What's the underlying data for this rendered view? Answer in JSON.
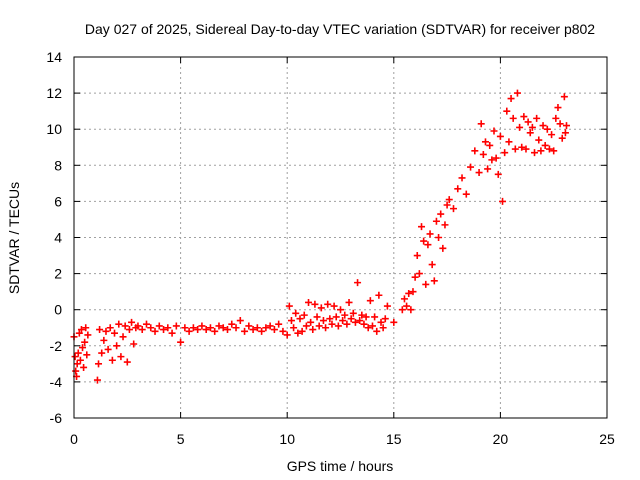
{
  "chart_data": {
    "type": "scatter",
    "title": "Day 027 of 2025, Sidereal Day-to-day VTEC variation (SDTVAR) for receiver p802",
    "xlabel": "GPS time / hours",
    "ylabel": "SDTVAR / TECUs",
    "xlim": [
      0,
      25
    ],
    "ylim": [
      -6,
      14
    ],
    "xticks": [
      "0",
      "5",
      "10",
      "15",
      "20",
      "25"
    ],
    "yticks": [
      "-6",
      "-4",
      "-2",
      "0",
      "2",
      "4",
      "6",
      "8",
      "10",
      "12",
      "14"
    ],
    "grid": true,
    "marker": "+",
    "color": "#ff0000",
    "series": [
      {
        "name": "SDTVAR",
        "points": [
          [
            0.0,
            -1.5
          ],
          [
            0.05,
            -2.6
          ],
          [
            0.08,
            -3.4
          ],
          [
            0.12,
            -3.7
          ],
          [
            0.15,
            -3.0
          ],
          [
            0.2,
            -2.4
          ],
          [
            0.25,
            -1.3
          ],
          [
            0.3,
            -2.8
          ],
          [
            0.35,
            -1.1
          ],
          [
            0.4,
            -2.1
          ],
          [
            0.45,
            -3.2
          ],
          [
            0.5,
            -1.8
          ],
          [
            0.55,
            -1.0
          ],
          [
            0.6,
            -2.5
          ],
          [
            0.65,
            -1.4
          ],
          [
            1.1,
            -3.9
          ],
          [
            1.15,
            -3.0
          ],
          [
            1.2,
            -1.1
          ],
          [
            1.3,
            -2.4
          ],
          [
            1.4,
            -1.7
          ],
          [
            1.5,
            -1.2
          ],
          [
            1.6,
            -2.2
          ],
          [
            1.7,
            -1.0
          ],
          [
            1.8,
            -2.8
          ],
          [
            1.9,
            -1.3
          ],
          [
            2.0,
            -2.0
          ],
          [
            2.1,
            -0.8
          ],
          [
            2.2,
            -2.6
          ],
          [
            2.3,
            -1.5
          ],
          [
            2.4,
            -0.9
          ],
          [
            2.5,
            -2.9
          ],
          [
            2.6,
            -1.1
          ],
          [
            2.7,
            -0.7
          ],
          [
            2.8,
            -1.9
          ],
          [
            2.9,
            -1.0
          ],
          [
            3.0,
            -0.9
          ],
          [
            3.2,
            -1.1
          ],
          [
            3.4,
            -0.8
          ],
          [
            3.6,
            -1.0
          ],
          [
            3.8,
            -1.2
          ],
          [
            4.0,
            -0.9
          ],
          [
            4.2,
            -1.1
          ],
          [
            4.4,
            -1.0
          ],
          [
            4.6,
            -1.3
          ],
          [
            4.8,
            -0.9
          ],
          [
            5.0,
            -1.8
          ],
          [
            5.2,
            -1.0
          ],
          [
            5.4,
            -1.2
          ],
          [
            5.6,
            -1.0
          ],
          [
            5.8,
            -1.1
          ],
          [
            6.0,
            -0.9
          ],
          [
            6.2,
            -1.1
          ],
          [
            6.4,
            -1.0
          ],
          [
            6.6,
            -1.2
          ],
          [
            6.8,
            -0.9
          ],
          [
            7.0,
            -1.0
          ],
          [
            7.2,
            -1.1
          ],
          [
            7.4,
            -0.8
          ],
          [
            7.6,
            -1.0
          ],
          [
            7.8,
            -0.6
          ],
          [
            8.0,
            -1.2
          ],
          [
            8.2,
            -0.9
          ],
          [
            8.4,
            -1.1
          ],
          [
            8.6,
            -1.0
          ],
          [
            8.8,
            -1.2
          ],
          [
            9.0,
            -1.0
          ],
          [
            9.2,
            -0.9
          ],
          [
            9.4,
            -1.1
          ],
          [
            9.6,
            -0.8
          ],
          [
            9.8,
            -1.2
          ],
          [
            10.0,
            -1.4
          ],
          [
            10.1,
            0.2
          ],
          [
            10.2,
            -0.6
          ],
          [
            10.3,
            -1.0
          ],
          [
            10.4,
            -0.2
          ],
          [
            10.5,
            -1.3
          ],
          [
            10.6,
            -0.5
          ],
          [
            10.7,
            -1.2
          ],
          [
            10.8,
            -0.3
          ],
          [
            10.9,
            -0.9
          ],
          [
            11.0,
            0.4
          ],
          [
            11.1,
            -0.7
          ],
          [
            11.2,
            -1.1
          ],
          [
            11.3,
            0.3
          ],
          [
            11.4,
            -0.4
          ],
          [
            11.5,
            -0.9
          ],
          [
            11.6,
            0.1
          ],
          [
            11.7,
            -0.6
          ],
          [
            11.8,
            -1.0
          ],
          [
            11.9,
            0.3
          ],
          [
            12.0,
            -0.5
          ],
          [
            12.1,
            -0.8
          ],
          [
            12.2,
            0.2
          ],
          [
            12.3,
            -0.4
          ],
          [
            12.4,
            -0.9
          ],
          [
            12.5,
            0.0
          ],
          [
            12.6,
            -0.6
          ],
          [
            12.7,
            -0.3
          ],
          [
            12.8,
            -0.8
          ],
          [
            12.9,
            0.4
          ],
          [
            13.0,
            -0.5
          ],
          [
            13.1,
            -0.2
          ],
          [
            13.2,
            -0.7
          ],
          [
            13.3,
            1.5
          ],
          [
            13.4,
            -0.6
          ],
          [
            13.5,
            -0.3
          ],
          [
            13.6,
            -0.8
          ],
          [
            13.7,
            -0.4
          ],
          [
            13.8,
            -1.0
          ],
          [
            13.9,
            0.5
          ],
          [
            14.0,
            -0.9
          ],
          [
            14.1,
            -0.4
          ],
          [
            14.2,
            -1.2
          ],
          [
            14.3,
            0.8
          ],
          [
            14.4,
            -0.7
          ],
          [
            14.5,
            -1.0
          ],
          [
            14.6,
            -0.5
          ],
          [
            14.7,
            0.2
          ],
          [
            15.0,
            -0.7
          ],
          [
            15.4,
            0.0
          ],
          [
            15.5,
            0.6
          ],
          [
            15.6,
            0.2
          ],
          [
            15.7,
            0.9
          ],
          [
            15.8,
            0.0
          ],
          [
            15.9,
            1.0
          ],
          [
            16.0,
            1.8
          ],
          [
            16.1,
            3.0
          ],
          [
            16.2,
            2.0
          ],
          [
            16.3,
            4.6
          ],
          [
            16.4,
            3.8
          ],
          [
            16.5,
            1.4
          ],
          [
            16.6,
            3.6
          ],
          [
            16.7,
            4.2
          ],
          [
            16.8,
            2.5
          ],
          [
            16.9,
            1.6
          ],
          [
            17.0,
            4.9
          ],
          [
            17.1,
            4.0
          ],
          [
            17.2,
            5.3
          ],
          [
            17.3,
            3.4
          ],
          [
            17.4,
            4.7
          ],
          [
            17.5,
            5.8
          ],
          [
            17.6,
            6.1
          ],
          [
            17.8,
            5.6
          ],
          [
            18.0,
            6.7
          ],
          [
            18.2,
            7.3
          ],
          [
            18.4,
            6.4
          ],
          [
            18.6,
            7.9
          ],
          [
            18.8,
            8.8
          ],
          [
            19.0,
            7.6
          ],
          [
            19.1,
            10.3
          ],
          [
            19.2,
            8.6
          ],
          [
            19.3,
            9.3
          ],
          [
            19.4,
            7.8
          ],
          [
            19.5,
            9.1
          ],
          [
            19.6,
            8.3
          ],
          [
            19.7,
            9.9
          ],
          [
            19.8,
            8.4
          ],
          [
            19.9,
            7.5
          ],
          [
            20.0,
            9.6
          ],
          [
            20.1,
            6.0
          ],
          [
            20.2,
            8.7
          ],
          [
            20.3,
            11.0
          ],
          [
            20.4,
            9.3
          ],
          [
            20.5,
            11.7
          ],
          [
            20.6,
            10.6
          ],
          [
            20.7,
            8.9
          ],
          [
            20.8,
            12.0
          ],
          [
            20.9,
            10.1
          ],
          [
            21.0,
            9.0
          ],
          [
            21.1,
            10.7
          ],
          [
            21.2,
            8.9
          ],
          [
            21.3,
            10.4
          ],
          [
            21.4,
            9.8
          ],
          [
            21.5,
            10.1
          ],
          [
            21.6,
            8.7
          ],
          [
            21.7,
            10.6
          ],
          [
            21.8,
            9.4
          ],
          [
            21.9,
            8.8
          ],
          [
            22.0,
            10.2
          ],
          [
            22.1,
            9.1
          ],
          [
            22.2,
            10.0
          ],
          [
            22.3,
            8.9
          ],
          [
            22.4,
            9.7
          ],
          [
            22.5,
            8.8
          ],
          [
            22.6,
            10.6
          ],
          [
            22.7,
            11.2
          ],
          [
            22.8,
            10.3
          ],
          [
            22.9,
            9.5
          ],
          [
            23.0,
            11.8
          ],
          [
            23.05,
            9.8
          ],
          [
            23.1,
            10.2
          ]
        ]
      }
    ]
  }
}
